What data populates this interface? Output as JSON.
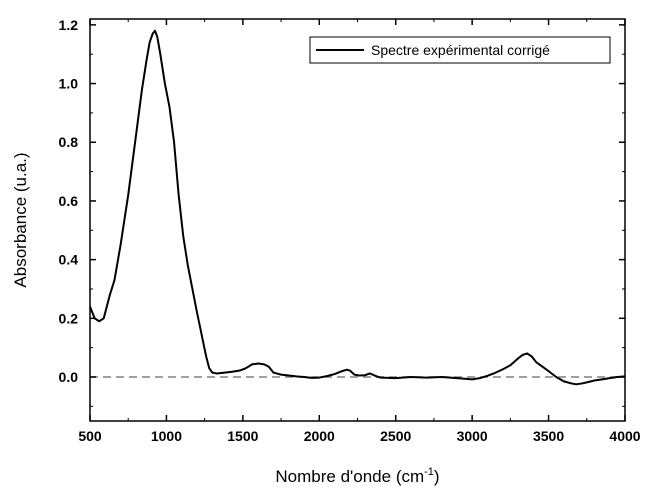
{
  "chart_data": {
    "type": "line",
    "title": "",
    "xlabel": "Nombre d'onde (cm",
    "xlabel_superscript": "-1",
    "xlabel_suffix": ")",
    "ylabel": "Absorbance (u.a.)",
    "xlim": [
      500,
      4000
    ],
    "ylim": [
      -0.15,
      1.22
    ],
    "x_ticks": [
      500,
      1000,
      1500,
      2000,
      2500,
      3000,
      3500,
      4000
    ],
    "x_tick_labels": [
      "500",
      "1000",
      "1500",
      "2000",
      "2500",
      "3000",
      "3500",
      "4000"
    ],
    "y_ticks": [
      0.0,
      0.2,
      0.4,
      0.6,
      0.8,
      1.0,
      1.2
    ],
    "y_tick_labels": [
      "0.0",
      "0.2",
      "0.4",
      "0.6",
      "0.8",
      "1.0",
      "1.2"
    ],
    "grid": false,
    "legend_position": "top-right",
    "reference_line": {
      "y": 0.0,
      "style": "dashed",
      "color": "#808080"
    },
    "series": [
      {
        "name": "Spectre expérimental corrigé",
        "color": "#000000",
        "x": [
          500,
          530,
          560,
          590,
          610,
          630,
          660,
          700,
          750,
          800,
          840,
          870,
          890,
          910,
          925,
          940,
          960,
          990,
          1020,
          1050,
          1080,
          1110,
          1140,
          1170,
          1200,
          1220,
          1240,
          1260,
          1280,
          1300,
          1330,
          1380,
          1430,
          1480,
          1520,
          1560,
          1600,
          1640,
          1670,
          1700,
          1750,
          1800,
          1850,
          1900,
          1950,
          2000,
          2050,
          2100,
          2150,
          2180,
          2200,
          2230,
          2260,
          2300,
          2330,
          2350,
          2370,
          2400,
          2500,
          2600,
          2700,
          2800,
          2900,
          2950,
          3000,
          3050,
          3100,
          3150,
          3200,
          3250,
          3300,
          3330,
          3360,
          3390,
          3420,
          3460,
          3500,
          3550,
          3600,
          3650,
          3680,
          3720,
          3760,
          3800,
          3850,
          3900,
          3950,
          4000
        ],
        "y": [
          0.24,
          0.2,
          0.19,
          0.2,
          0.24,
          0.28,
          0.33,
          0.45,
          0.62,
          0.82,
          0.98,
          1.08,
          1.14,
          1.17,
          1.18,
          1.16,
          1.1,
          1.0,
          0.92,
          0.8,
          0.62,
          0.48,
          0.38,
          0.3,
          0.22,
          0.17,
          0.12,
          0.07,
          0.03,
          0.015,
          0.012,
          0.015,
          0.018,
          0.022,
          0.03,
          0.043,
          0.046,
          0.043,
          0.035,
          0.015,
          0.008,
          0.005,
          0.002,
          0.0,
          -0.003,
          -0.002,
          0.003,
          0.01,
          0.02,
          0.025,
          0.022,
          0.008,
          0.005,
          0.006,
          0.012,
          0.008,
          0.003,
          -0.002,
          -0.004,
          0.0,
          -0.002,
          0.0,
          -0.004,
          -0.006,
          -0.008,
          -0.004,
          0.004,
          0.014,
          0.026,
          0.04,
          0.063,
          0.075,
          0.08,
          0.07,
          0.05,
          0.035,
          0.02,
          0.0,
          -0.015,
          -0.022,
          -0.025,
          -0.022,
          -0.017,
          -0.012,
          -0.008,
          -0.004,
          0.0,
          0.002
        ]
      }
    ]
  }
}
